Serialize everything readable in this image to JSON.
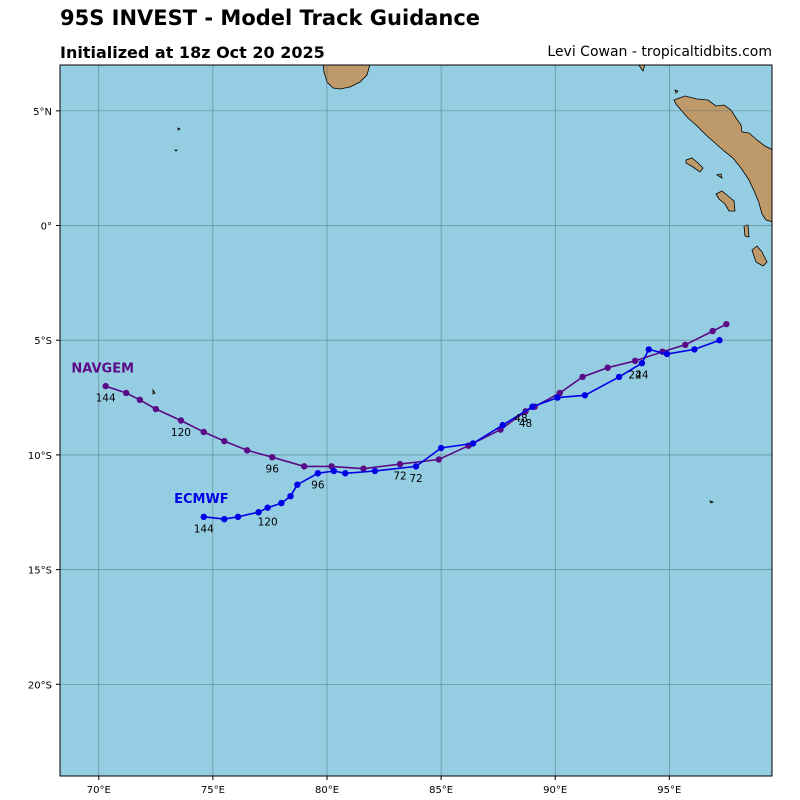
{
  "header": {
    "title": "95S INVEST - Model Track Guidance",
    "subtitle": "Initialized at 18z Oct 20 2025",
    "credit": "Levi Cowan - tropicaltidbits.com"
  },
  "map": {
    "lon_range": [
      68.3,
      99.5
    ],
    "lat_range": [
      -24.0,
      7.0
    ],
    "ocean_color": "#95CEE3",
    "land_color": "#BE9A6A",
    "grid_color": "#4E6A75",
    "lon_ticks": [
      {
        "lon": 70,
        "label": "70°E"
      },
      {
        "lon": 75,
        "label": "75°E"
      },
      {
        "lon": 80,
        "label": "80°E"
      },
      {
        "lon": 85,
        "label": "85°E"
      },
      {
        "lon": 90,
        "label": "90°E"
      },
      {
        "lon": 95,
        "label": "95°E"
      }
    ],
    "lat_ticks": [
      {
        "lat": 5,
        "label": "5°N"
      },
      {
        "lat": 0,
        "label": "0°"
      },
      {
        "lat": -5,
        "label": "5°S"
      },
      {
        "lat": -10,
        "label": "10°S"
      },
      {
        "lat": -15,
        "label": "15°S"
      },
      {
        "lat": -20,
        "label": "20°S"
      }
    ]
  },
  "tracks": [
    {
      "name": "NAVGEM",
      "color": "#5B0A87",
      "points": [
        [
          97.5,
          -4.3
        ],
        [
          96.9,
          -4.6
        ],
        [
          95.7,
          -5.2
        ],
        [
          94.7,
          -5.5
        ],
        [
          93.5,
          -5.9
        ],
        [
          92.3,
          -6.2
        ],
        [
          91.2,
          -6.6
        ],
        [
          90.2,
          -7.3
        ],
        [
          89.1,
          -7.9
        ],
        [
          88.7,
          -8.1
        ],
        [
          87.6,
          -8.9
        ],
        [
          86.2,
          -9.6
        ],
        [
          84.9,
          -10.2
        ],
        [
          83.2,
          -10.4
        ],
        [
          81.6,
          -10.6
        ],
        [
          80.2,
          -10.5
        ],
        [
          79.0,
          -10.5
        ],
        [
          77.6,
          -10.1
        ],
        [
          76.5,
          -9.8
        ],
        [
          75.5,
          -9.4
        ],
        [
          74.6,
          -9.0
        ],
        [
          73.6,
          -8.5
        ],
        [
          72.5,
          -8.0
        ],
        [
          71.8,
          -7.6
        ],
        [
          71.2,
          -7.3
        ],
        [
          70.3,
          -7.0
        ]
      ],
      "labels": [
        {
          "text": "24",
          "lon": 93.5,
          "lat": -6.5
        },
        {
          "text": "48",
          "lon": 88.7,
          "lat": -8.6
        },
        {
          "text": "72",
          "lon": 83.2,
          "lat": -10.9
        },
        {
          "text": "96",
          "lon": 77.6,
          "lat": -10.6
        },
        {
          "text": "120",
          "lon": 73.6,
          "lat": -9.0
        },
        {
          "text": "144",
          "lon": 70.3,
          "lat": -7.5
        }
      ],
      "name_label": {
        "lon": 68.8,
        "lat": -6.4
      }
    },
    {
      "name": "ECMWF",
      "color": "#0000E6",
      "points": [
        [
          97.2,
          -5.0
        ],
        [
          96.1,
          -5.4
        ],
        [
          94.9,
          -5.6
        ],
        [
          94.1,
          -5.4
        ],
        [
          93.8,
          -6.0
        ],
        [
          92.8,
          -6.6
        ],
        [
          91.3,
          -7.4
        ],
        [
          90.1,
          -7.5
        ],
        [
          89.0,
          -7.9
        ],
        [
          87.7,
          -8.7
        ],
        [
          86.4,
          -9.5
        ],
        [
          85.0,
          -9.7
        ],
        [
          83.9,
          -10.5
        ],
        [
          82.1,
          -10.7
        ],
        [
          80.8,
          -10.8
        ],
        [
          80.3,
          -10.7
        ],
        [
          79.6,
          -10.8
        ],
        [
          78.7,
          -11.3
        ],
        [
          78.4,
          -11.8
        ],
        [
          78.0,
          -12.1
        ],
        [
          77.4,
          -12.3
        ],
        [
          77.0,
          -12.5
        ],
        [
          76.1,
          -12.7
        ],
        [
          75.5,
          -12.8
        ],
        [
          74.6,
          -12.7
        ]
      ],
      "labels": [
        {
          "text": "24",
          "lon": 93.8,
          "lat": -6.5
        },
        {
          "text": "48",
          "lon": 88.5,
          "lat": -8.4
        },
        {
          "text": "72",
          "lon": 83.9,
          "lat": -11.0
        },
        {
          "text": "96",
          "lon": 79.6,
          "lat": -11.3
        },
        {
          "text": "120",
          "lon": 77.4,
          "lat": -12.9
        },
        {
          "text": "144",
          "lon": 74.6,
          "lat": -13.2
        }
      ],
      "name_label": {
        "lon": 73.3,
        "lat": -12.1
      }
    }
  ]
}
